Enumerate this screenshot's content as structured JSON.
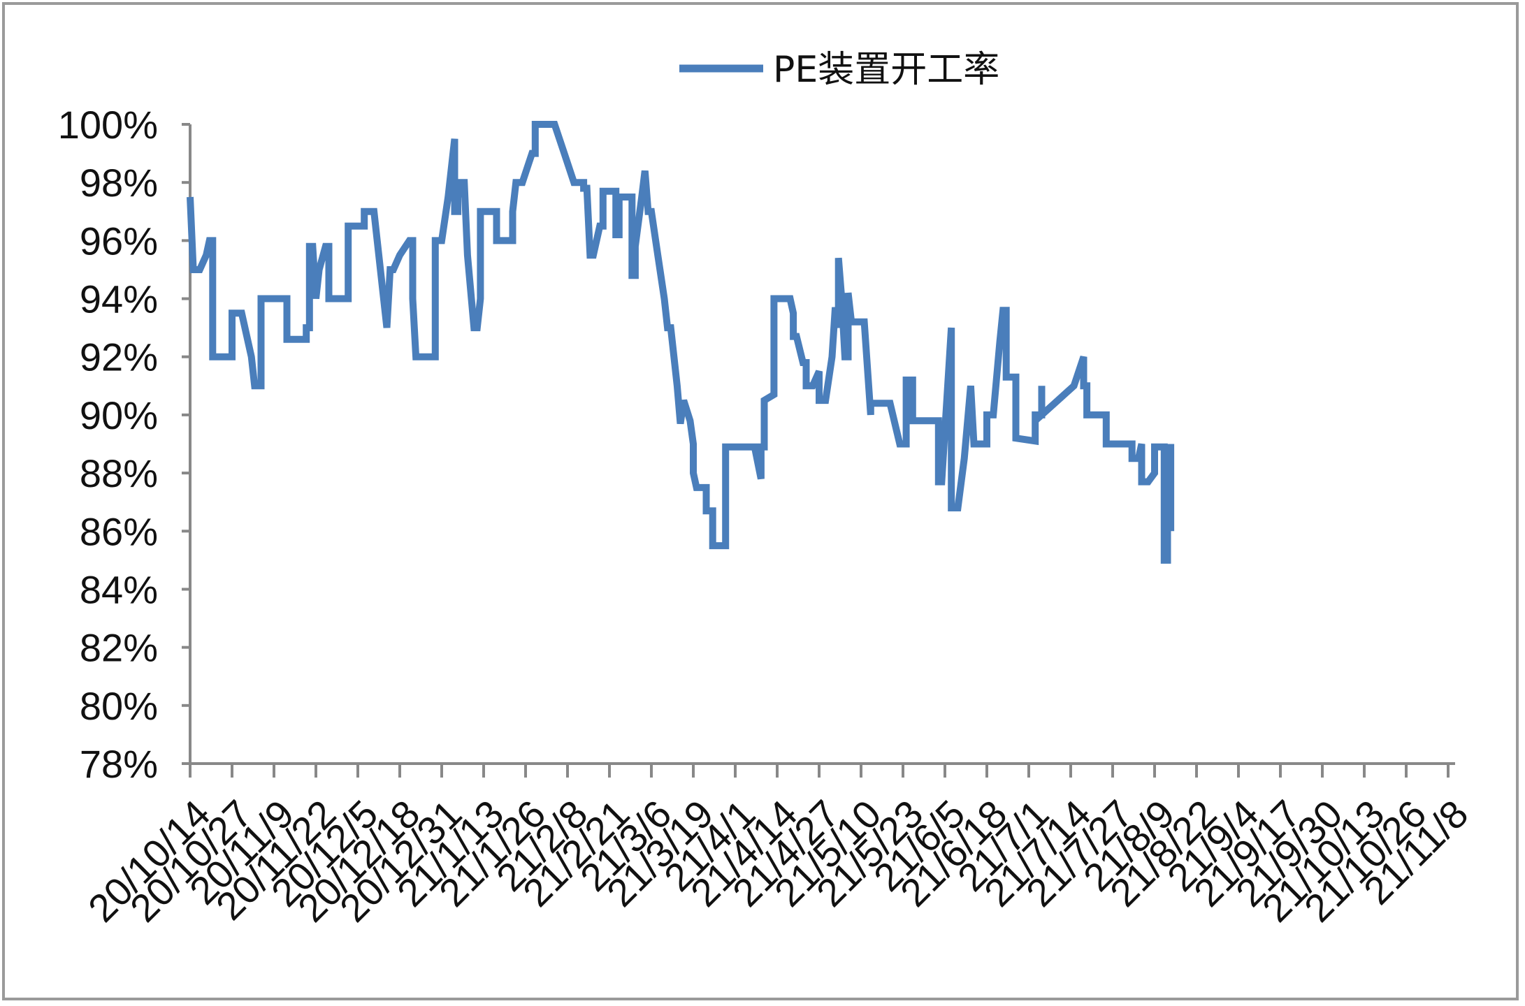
{
  "chart_data": {
    "type": "line",
    "title": "",
    "xlabel": "",
    "ylabel": "",
    "ylim": [
      0.78,
      1.0
    ],
    "y_ticks": [
      "78%",
      "80%",
      "82%",
      "84%",
      "86%",
      "88%",
      "90%",
      "92%",
      "94%",
      "96%",
      "98%",
      "100%"
    ],
    "x_tick_labels": [
      "20/10/14",
      "20/10/27",
      "20/11/9",
      "20/11/22",
      "20/12/5",
      "20/12/18",
      "20/12/31",
      "21/1/13",
      "21/1/26",
      "21/2/8",
      "21/2/21",
      "21/3/6",
      "21/3/19",
      "21/4/1",
      "21/4/14",
      "21/4/27",
      "21/5/10",
      "21/5/23",
      "21/6/5",
      "21/6/18",
      "21/7/1",
      "21/7/14",
      "21/7/27",
      "21/8/9",
      "21/8/22",
      "21/9/4",
      "21/9/17",
      "21/9/30",
      "21/10/13",
      "21/10/26",
      "21/11/8"
    ],
    "grid": false,
    "legend": {
      "position": "top-center",
      "color": "#4a7ebb"
    },
    "series": [
      {
        "name": "PE装置开工率",
        "color": "#4a7ebb",
        "points": [
          [
            "20/10/14",
            0.975
          ],
          [
            "20/10/15",
            0.95
          ],
          [
            "20/10/17",
            0.95
          ],
          [
            "20/10/19",
            0.955
          ],
          [
            "20/10/20",
            0.96
          ],
          [
            "20/10/21",
            0.96
          ],
          [
            "20/10/21",
            0.92
          ],
          [
            "20/10/27",
            0.92
          ],
          [
            "20/10/27",
            0.935
          ],
          [
            "20/10/30",
            0.935
          ],
          [
            "20/11/2",
            0.92
          ],
          [
            "20/11/3",
            0.91
          ],
          [
            "20/11/5",
            0.91
          ],
          [
            "20/11/5",
            0.94
          ],
          [
            "20/11/13",
            0.94
          ],
          [
            "20/11/13",
            0.926
          ],
          [
            "20/11/19",
            0.926
          ],
          [
            "20/11/19",
            0.93
          ],
          [
            "20/11/20",
            0.93
          ],
          [
            "20/11/20",
            0.958
          ],
          [
            "20/11/21",
            0.958
          ],
          [
            "20/11/22",
            0.94
          ],
          [
            "20/11/23",
            0.95
          ],
          [
            "20/11/25",
            0.958
          ],
          [
            "20/11/26",
            0.958
          ],
          [
            "20/11/26",
            0.94
          ],
          [
            "20/12/2",
            0.94
          ],
          [
            "20/12/2",
            0.965
          ],
          [
            "20/12/7",
            0.965
          ],
          [
            "20/12/7",
            0.97
          ],
          [
            "20/12/10",
            0.97
          ],
          [
            "20/12/12",
            0.95
          ],
          [
            "20/12/14",
            0.93
          ],
          [
            "20/12/15",
            0.95
          ],
          [
            "20/12/16",
            0.95
          ],
          [
            "20/12/18",
            0.955
          ],
          [
            "20/12/21",
            0.96
          ],
          [
            "20/12/22",
            0.96
          ],
          [
            "20/12/22",
            0.94
          ],
          [
            "20/12/23",
            0.92
          ],
          [
            "20/12/29",
            0.92
          ],
          [
            "20/12/29",
            0.96
          ],
          [
            "20/12/31",
            0.96
          ],
          [
            "21/1/2",
            0.975
          ],
          [
            "21/1/4",
            0.995
          ],
          [
            "21/1/4",
            0.97
          ],
          [
            "21/1/5",
            0.97
          ],
          [
            "21/1/5",
            0.98
          ],
          [
            "21/1/6",
            0.975
          ],
          [
            "21/1/6",
            0.98
          ],
          [
            "21/1/7",
            0.98
          ],
          [
            "21/1/8",
            0.955
          ],
          [
            "21/1/10",
            0.93
          ],
          [
            "21/1/11",
            0.93
          ],
          [
            "21/1/12",
            0.94
          ],
          [
            "21/1/12",
            0.97
          ],
          [
            "21/1/17",
            0.97
          ],
          [
            "21/1/17",
            0.96
          ],
          [
            "21/1/22",
            0.96
          ],
          [
            "21/1/22",
            0.97
          ],
          [
            "21/1/23",
            0.98
          ],
          [
            "21/1/25",
            0.98
          ],
          [
            "21/1/28",
            0.99
          ],
          [
            "21/1/29",
            0.99
          ],
          [
            "21/1/29",
            1.0
          ],
          [
            "21/2/4",
            1.0
          ],
          [
            "21/2/7",
            0.99
          ],
          [
            "21/2/10",
            0.98
          ],
          [
            "21/2/13",
            0.98
          ],
          [
            "21/2/13",
            0.978
          ],
          [
            "21/2/14",
            0.978
          ],
          [
            "21/2/15",
            0.955
          ],
          [
            "21/2/16",
            0.955
          ],
          [
            "21/2/18",
            0.965
          ],
          [
            "21/2/19",
            0.965
          ],
          [
            "21/2/19",
            0.977
          ],
          [
            "21/2/23",
            0.977
          ],
          [
            "21/2/23",
            0.962
          ],
          [
            "21/2/24",
            0.962
          ],
          [
            "21/2/24",
            0.975
          ],
          [
            "21/2/28",
            0.975
          ],
          [
            "21/2/28",
            0.948
          ],
          [
            "21/3/1",
            0.948
          ],
          [
            "21/3/1",
            0.958
          ],
          [
            "21/3/3",
            0.975
          ],
          [
            "21/3/4",
            0.984
          ],
          [
            "21/3/5",
            0.97
          ],
          [
            "21/3/6",
            0.97
          ],
          [
            "21/3/8",
            0.955
          ],
          [
            "21/3/10",
            0.94
          ],
          [
            "21/3/11",
            0.93
          ],
          [
            "21/3/12",
            0.93
          ],
          [
            "21/3/14",
            0.91
          ],
          [
            "21/3/15",
            0.897
          ],
          [
            "21/3/16",
            0.905
          ],
          [
            "21/3/18",
            0.898
          ],
          [
            "21/3/19",
            0.89
          ],
          [
            "21/3/19",
            0.88
          ],
          [
            "21/3/20",
            0.875
          ],
          [
            "21/3/23",
            0.875
          ],
          [
            "21/3/23",
            0.867
          ],
          [
            "21/3/25",
            0.867
          ],
          [
            "21/3/25",
            0.855
          ],
          [
            "21/3/29",
            0.855
          ],
          [
            "21/3/29",
            0.889
          ],
          [
            "21/4/6",
            0.889
          ],
          [
            "21/4/7",
            0.889
          ],
          [
            "21/4/9",
            0.878
          ],
          [
            "21/4/9",
            0.889
          ],
          [
            "21/4/10",
            0.889
          ],
          [
            "21/4/10",
            0.905
          ],
          [
            "21/4/13",
            0.907
          ],
          [
            "21/4/13",
            0.94
          ],
          [
            "21/4/18",
            0.94
          ],
          [
            "21/4/19",
            0.935
          ],
          [
            "21/4/19",
            0.927
          ],
          [
            "21/4/20",
            0.927
          ],
          [
            "21/4/22",
            0.918
          ],
          [
            "21/4/23",
            0.918
          ],
          [
            "21/4/23",
            0.91
          ],
          [
            "21/4/25",
            0.91
          ],
          [
            "21/4/27",
            0.915
          ],
          [
            "21/4/27",
            0.905
          ],
          [
            "21/4/29",
            0.905
          ],
          [
            "21/5/1",
            0.92
          ],
          [
            "21/5/2",
            0.937
          ],
          [
            "21/5/3",
            0.93
          ],
          [
            "21/5/3",
            0.954
          ],
          [
            "21/5/4",
            0.94
          ],
          [
            "21/5/5",
            0.92
          ],
          [
            "21/5/6",
            0.92
          ],
          [
            "21/5/6",
            0.942
          ],
          [
            "21/5/7",
            0.932
          ],
          [
            "21/5/11",
            0.932
          ],
          [
            "21/5/13",
            0.9
          ],
          [
            "21/5/13",
            0.904
          ],
          [
            "21/5/19",
            0.904
          ],
          [
            "21/5/22",
            0.89
          ],
          [
            "21/5/24",
            0.89
          ],
          [
            "21/5/24",
            0.912
          ],
          [
            "21/5/26",
            0.912
          ],
          [
            "21/5/26",
            0.898
          ],
          [
            "21/6/3",
            0.898
          ],
          [
            "21/6/3",
            0.877
          ],
          [
            "21/6/4",
            0.877
          ],
          [
            "21/6/7",
            0.93
          ],
          [
            "21/6/7",
            0.868
          ],
          [
            "21/6/9",
            0.868
          ],
          [
            "21/6/11",
            0.885
          ],
          [
            "21/6/13",
            0.91
          ],
          [
            "21/6/14",
            0.89
          ],
          [
            "21/6/18",
            0.89
          ],
          [
            "21/6/18",
            0.9
          ],
          [
            "21/6/20",
            0.9
          ],
          [
            "21/6/22",
            0.925
          ],
          [
            "21/6/23",
            0.936
          ],
          [
            "21/6/24",
            0.936
          ],
          [
            "21/6/24",
            0.913
          ],
          [
            "21/6/27",
            0.913
          ],
          [
            "21/6/27",
            0.892
          ],
          [
            "21/7/3",
            0.891
          ],
          [
            "21/7/3",
            0.9
          ],
          [
            "21/7/5",
            0.9
          ],
          [
            "21/7/5",
            0.91
          ],
          [
            "21/7/5",
            0.9
          ],
          [
            "21/7/15",
            0.91
          ],
          [
            "21/7/18",
            0.92
          ],
          [
            "21/7/18",
            0.91
          ],
          [
            "21/7/19",
            0.91
          ],
          [
            "21/7/19",
            0.9
          ],
          [
            "21/7/25",
            0.9
          ],
          [
            "21/7/25",
            0.89
          ],
          [
            "21/8/2",
            0.89
          ],
          [
            "21/8/2",
            0.885
          ],
          [
            "21/8/4",
            0.885
          ],
          [
            "21/8/5",
            0.89
          ],
          [
            "21/8/5",
            0.877
          ],
          [
            "21/8/7",
            0.877
          ],
          [
            "21/8/9",
            0.88
          ],
          [
            "21/8/9",
            0.889
          ],
          [
            "21/8/12",
            0.889
          ],
          [
            "21/8/12",
            0.85
          ],
          [
            "21/8/13",
            0.85
          ],
          [
            "21/8/13",
            0.88
          ],
          [
            "21/8/14",
            0.88
          ],
          [
            "21/8/14",
            0.89
          ],
          [
            "21/8/14",
            0.86
          ]
        ]
      }
    ]
  }
}
